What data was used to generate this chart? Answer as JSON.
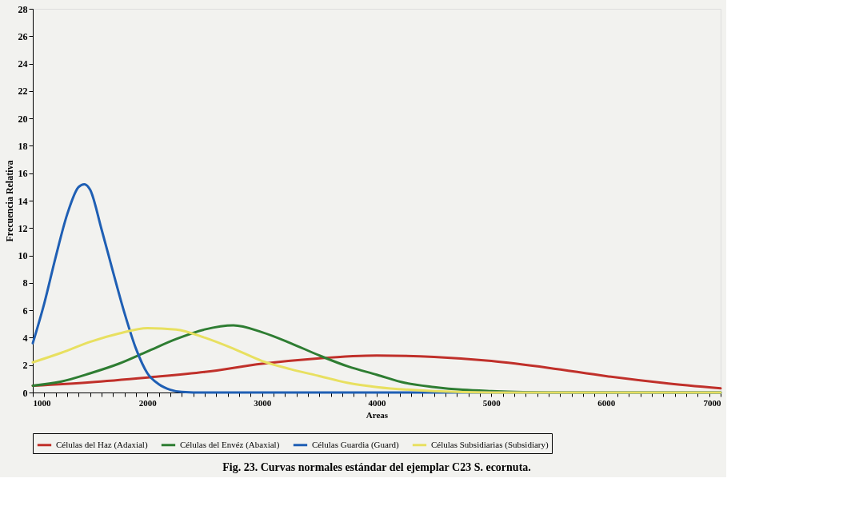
{
  "chart_data": {
    "type": "line",
    "title": "Fig. 23. Curvas normales estándar del ejemplar C23 S. ecornuta.",
    "xlabel": "Areas",
    "ylabel": "Frecuencia Relativa",
    "xlim": [
      1000,
      7000
    ],
    "xticks": [
      1000,
      {
        "value": 1100,
        "label": null
      },
      {
        "value": 1200,
        "label": null
      },
      {
        "value": 1300,
        "label": null
      },
      {
        "value": 1400,
        "label": null
      },
      {
        "value": 1500,
        "label": null
      },
      {
        "value": 1600,
        "label": null
      },
      {
        "value": 1700,
        "label": null
      },
      {
        "value": 1800,
        "label": null
      },
      {
        "value": 1900,
        "label": null
      },
      2000,
      {
        "value": 2100,
        "label": null
      },
      {
        "value": 2200,
        "label": null
      },
      {
        "value": 2300,
        "label": null
      },
      {
        "value": 2400,
        "label": null
      },
      {
        "value": 2500,
        "label": null
      },
      {
        "value": 2600,
        "label": null
      },
      {
        "value": 2700,
        "label": null
      },
      {
        "value": 2800,
        "label": null
      },
      {
        "value": 2900,
        "label": null
      },
      3000,
      {
        "value": 3100,
        "label": null
      },
      {
        "value": 3200,
        "label": null
      },
      {
        "value": 3300,
        "label": null
      },
      {
        "value": 3400,
        "label": null
      },
      {
        "value": 3500,
        "label": null
      },
      {
        "value": 3600,
        "label": null
      },
      {
        "value": 3700,
        "label": null
      },
      {
        "value": 3800,
        "label": null
      },
      {
        "value": 3900,
        "label": null
      },
      4000,
      {
        "value": 4100,
        "label": null
      },
      {
        "value": 4200,
        "label": null
      },
      {
        "value": 4300,
        "label": null
      },
      {
        "value": 4400,
        "label": null
      },
      {
        "value": 4500,
        "label": null
      },
      {
        "value": 4600,
        "label": null
      },
      {
        "value": 4700,
        "label": null
      },
      {
        "value": 4800,
        "label": null
      },
      {
        "value": 4900,
        "label": null
      },
      5000,
      {
        "value": 5100,
        "label": null
      },
      {
        "value": 5200,
        "label": null
      },
      {
        "value": 5300,
        "label": null
      },
      {
        "value": 5400,
        "label": null
      },
      {
        "value": 5500,
        "label": null
      },
      {
        "value": 5600,
        "label": null
      },
      {
        "value": 5700,
        "label": null
      },
      {
        "value": 5800,
        "label": null
      },
      {
        "value": 5900,
        "label": null
      },
      6000,
      {
        "value": 6100,
        "label": null
      },
      {
        "value": 6200,
        "label": null
      },
      {
        "value": 6300,
        "label": null
      },
      {
        "value": 6400,
        "label": null
      },
      {
        "value": 6500,
        "label": null
      },
      {
        "value": 6600,
        "label": null
      },
      {
        "value": 6700,
        "label": null
      },
      {
        "value": 6800,
        "label": null
      },
      {
        "value": 6900,
        "label": null
      },
      7000
    ],
    "ylim": [
      0,
      28
    ],
    "yticks": [
      0,
      2,
      4,
      6,
      8,
      10,
      12,
      14,
      16,
      18,
      20,
      22,
      24,
      26,
      28
    ],
    "grid": false,
    "legend": "bottom",
    "series": [
      {
        "name": "Células del Haz (Adaxial)",
        "color": "#c0302a",
        "x": [
          1000,
          1500,
          2000,
          2500,
          3000,
          3500,
          4000,
          4500,
          5000,
          5500,
          6000,
          6500,
          7000
        ],
        "values": [
          0.5,
          0.75,
          1.1,
          1.5,
          2.1,
          2.5,
          2.7,
          2.6,
          2.3,
          1.8,
          1.2,
          0.7,
          0.3
        ]
      },
      {
        "name": "Células del Envéz (Abaxial)",
        "color": "#2e7d32",
        "x": [
          1000,
          1250,
          1500,
          1750,
          2000,
          2250,
          2500,
          2750,
          3000,
          3250,
          3500,
          3750,
          4000,
          4250,
          4500,
          4750,
          5000,
          5500,
          6000,
          7000
        ],
        "values": [
          0.5,
          0.8,
          1.4,
          2.1,
          3.0,
          3.9,
          4.6,
          4.9,
          4.4,
          3.6,
          2.7,
          1.9,
          1.3,
          0.7,
          0.4,
          0.2,
          0.1,
          0,
          0,
          0
        ]
      },
      {
        "name": "Células Guardia (Guard)",
        "color": "#1f5fb4",
        "x": [
          1000,
          1100,
          1200,
          1300,
          1400,
          1450,
          1500,
          1600,
          1700,
          1800,
          1900,
          2000,
          2100,
          2200,
          2300,
          2500,
          7000
        ],
        "values": [
          3.6,
          6.5,
          9.9,
          13,
          15,
          15.2,
          14.8,
          11.9,
          8.8,
          5.8,
          3.2,
          1.4,
          0.6,
          0.2,
          0.05,
          0,
          0
        ]
      },
      {
        "name": "Células Subsidiarias (Subsidiary)",
        "color": "#e8e060",
        "x": [
          1000,
          1250,
          1500,
          1750,
          2000,
          2250,
          2500,
          2750,
          3000,
          3250,
          3500,
          3750,
          4000,
          4500,
          5000,
          7000
        ],
        "values": [
          2.2,
          2.9,
          3.7,
          4.3,
          4.7,
          4.6,
          4.0,
          3.2,
          2.3,
          1.7,
          1.2,
          0.7,
          0.4,
          0.1,
          0,
          0
        ]
      }
    ]
  }
}
